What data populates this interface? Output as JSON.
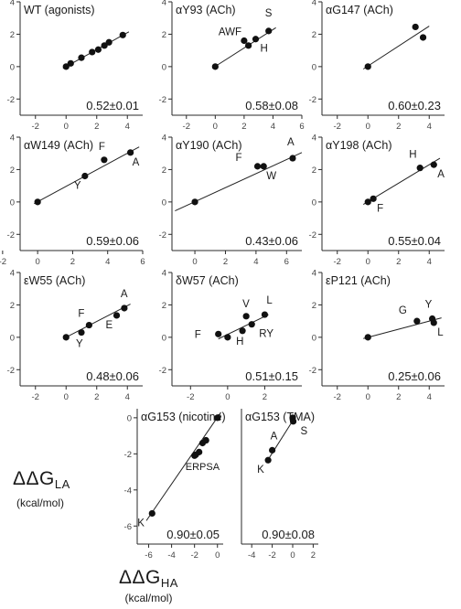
{
  "axis_labels": {
    "y_main": "ΔΔG",
    "y_sub": "LA",
    "y_unit": "(kcal/mol)",
    "x_main": "ΔΔG",
    "x_sub": "HA",
    "x_unit": "(kcal/mol)"
  },
  "chart_data": [
    {
      "type": "scatter",
      "title": "WT (agonists)",
      "xlim": [
        -3,
        5
      ],
      "ylim": [
        -3,
        4
      ],
      "xticks": [
        -2,
        0,
        2,
        4
      ],
      "yticks": [
        -2,
        0,
        2,
        4
      ],
      "points": [
        {
          "x": 0.0,
          "y": 0.0,
          "label": ""
        },
        {
          "x": 0.3,
          "y": 0.2,
          "label": ""
        },
        {
          "x": 1.0,
          "y": 0.55,
          "label": ""
        },
        {
          "x": 1.7,
          "y": 0.9,
          "label": ""
        },
        {
          "x": 2.1,
          "y": 1.05,
          "label": ""
        },
        {
          "x": 2.5,
          "y": 1.3,
          "label": ""
        },
        {
          "x": 2.8,
          "y": 1.5,
          "label": ""
        },
        {
          "x": 3.7,
          "y": 1.95,
          "label": ""
        }
      ],
      "fit": [
        [
          -0.2,
          -0.1
        ],
        [
          4.1,
          2.15
        ]
      ],
      "annotation": "0.52±0.01"
    },
    {
      "type": "scatter",
      "title": "αY93 (ACh)",
      "xlim": [
        -3,
        6
      ],
      "ylim": [
        -3,
        4
      ],
      "xticks": [
        -2,
        0,
        2,
        4,
        6
      ],
      "yticks": [
        -2,
        0,
        2,
        4
      ],
      "points": [
        {
          "x": 0.0,
          "y": 0.0,
          "label": ""
        },
        {
          "x": 2.0,
          "y": 1.6,
          "label": "AWF"
        },
        {
          "x": 2.3,
          "y": 1.3,
          "label": ""
        },
        {
          "x": 2.8,
          "y": 1.7,
          "label": "H"
        },
        {
          "x": 3.7,
          "y": 2.2,
          "label": "S"
        }
      ],
      "fit": [
        [
          -0.2,
          -0.1
        ],
        [
          4.2,
          2.4
        ]
      ],
      "annotation": "0.58±0.08"
    },
    {
      "type": "scatter",
      "title": "αG147 (ACh)",
      "xlim": [
        -3,
        5
      ],
      "ylim": [
        -3,
        4
      ],
      "xticks": [
        -2,
        0,
        2,
        4
      ],
      "yticks": [
        -2,
        0,
        2,
        4
      ],
      "points": [
        {
          "x": 0.0,
          "y": 0.0,
          "label": ""
        },
        {
          "x": 3.1,
          "y": 2.45,
          "label": ""
        },
        {
          "x": 3.6,
          "y": 1.8,
          "label": ""
        }
      ],
      "fit": [
        [
          -0.3,
          -0.15
        ],
        [
          4.0,
          2.5
        ]
      ],
      "annotation": "0.60±0.23"
    },
    {
      "type": "scatter",
      "title": "αW149 (ACh)",
      "xlim": [
        -1,
        6
      ],
      "ylim": [
        -3,
        4
      ],
      "xticks": [
        -2,
        0,
        2,
        4,
        6
      ],
      "yticks": [
        -2,
        0,
        2,
        4
      ],
      "points": [
        {
          "x": 0.0,
          "y": 0.0,
          "label": ""
        },
        {
          "x": 2.7,
          "y": 1.6,
          "label": "Y"
        },
        {
          "x": 3.8,
          "y": 2.6,
          "label": "F"
        },
        {
          "x": 5.3,
          "y": 3.05,
          "label": "A"
        }
      ],
      "fit": [
        [
          -0.2,
          -0.1
        ],
        [
          5.8,
          3.4
        ]
      ],
      "annotation": "0.59±0.06"
    },
    {
      "type": "scatter",
      "title": "αY190 (ACh)",
      "xlim": [
        -1.5,
        7
      ],
      "ylim": [
        -3,
        4
      ],
      "xticks": [
        0,
        2,
        4,
        6
      ],
      "yticks": [
        -2,
        0,
        2,
        4
      ],
      "points": [
        {
          "x": 0.0,
          "y": 0.0,
          "label": ""
        },
        {
          "x": 4.1,
          "y": 2.2,
          "label": "F"
        },
        {
          "x": 4.5,
          "y": 2.2,
          "label": "W"
        },
        {
          "x": 6.4,
          "y": 2.7,
          "label": "A"
        }
      ],
      "fit": [
        [
          -1.3,
          -0.55
        ],
        [
          7.0,
          3.05
        ]
      ],
      "annotation": "0.43±0.06"
    },
    {
      "type": "scatter",
      "title": "αY198 (ACh)",
      "xlim": [
        -3,
        5
      ],
      "ylim": [
        -3,
        4
      ],
      "xticks": [
        -2,
        0,
        2,
        4
      ],
      "yticks": [
        -2,
        0,
        2,
        4
      ],
      "points": [
        {
          "x": 0.0,
          "y": 0.0,
          "label": ""
        },
        {
          "x": 0.35,
          "y": 0.2,
          "label": "F"
        },
        {
          "x": 3.4,
          "y": 2.1,
          "label": "H"
        },
        {
          "x": 4.3,
          "y": 2.3,
          "label": "A"
        }
      ],
      "fit": [
        [
          -0.3,
          -0.15
        ],
        [
          4.7,
          2.7
        ]
      ],
      "annotation": "0.55±0.04"
    },
    {
      "type": "scatter",
      "title": "εW55 (ACh)",
      "xlim": [
        -3,
        5
      ],
      "ylim": [
        -3,
        4
      ],
      "xticks": [
        -2,
        0,
        2,
        4
      ],
      "yticks": [
        -2,
        0,
        2,
        4
      ],
      "points": [
        {
          "x": 0.0,
          "y": 0.0,
          "label": ""
        },
        {
          "x": 1.0,
          "y": 0.3,
          "label": "Y"
        },
        {
          "x": 1.5,
          "y": 0.75,
          "label": "F"
        },
        {
          "x": 3.3,
          "y": 1.35,
          "label": "E"
        },
        {
          "x": 3.8,
          "y": 1.8,
          "label": "A"
        }
      ],
      "fit": [
        [
          -0.1,
          -0.05
        ],
        [
          4.2,
          2.05
        ]
      ],
      "annotation": "0.48±0.06"
    },
    {
      "type": "scatter",
      "title": "δW57 (ACh)",
      "xlim": [
        -3,
        4
      ],
      "ylim": [
        -3,
        4
      ],
      "xticks": [
        -2,
        0,
        2
      ],
      "yticks": [
        -2,
        0,
        2,
        4
      ],
      "points": [
        {
          "x": -0.5,
          "y": 0.2,
          "label": "F"
        },
        {
          "x": 0.0,
          "y": 0.0,
          "label": ""
        },
        {
          "x": 0.8,
          "y": 0.4,
          "label": "H"
        },
        {
          "x": 1.0,
          "y": 1.3,
          "label": "V"
        },
        {
          "x": 1.3,
          "y": 0.8,
          "label": "RY"
        },
        {
          "x": 2.0,
          "y": 1.4,
          "label": "L"
        }
      ],
      "fit": [
        [
          -0.5,
          -0.1
        ],
        [
          2.2,
          1.4
        ]
      ],
      "annotation": "0.51±0.15"
    },
    {
      "type": "scatter",
      "title": "εP121 (ACh)",
      "xlim": [
        -3,
        5
      ],
      "ylim": [
        -3,
        4
      ],
      "xticks": [
        -2,
        0,
        2,
        4
      ],
      "yticks": [
        -2,
        0,
        2,
        4
      ],
      "points": [
        {
          "x": 0.0,
          "y": 0.0,
          "label": ""
        },
        {
          "x": 3.2,
          "y": 1.0,
          "label": "G"
        },
        {
          "x": 4.2,
          "y": 1.15,
          "label": "Y"
        },
        {
          "x": 4.3,
          "y": 0.9,
          "label": "L"
        }
      ],
      "fit": [
        [
          -0.3,
          -0.08
        ],
        [
          4.8,
          1.2
        ]
      ],
      "annotation": "0.25±0.06"
    },
    {
      "type": "scatter",
      "title": "αG153 (nicotine)",
      "xlim": [
        -7,
        0.5
      ],
      "ylim": [
        -7,
        0.5
      ],
      "xticks": [
        -6,
        -4,
        -2,
        0
      ],
      "yticks": [
        -6,
        -4,
        -2,
        0
      ],
      "points": [
        {
          "x": -5.7,
          "y": -5.3,
          "label": "K"
        },
        {
          "x": -2.0,
          "y": -2.1,
          "label": ""
        },
        {
          "x": -1.9,
          "y": -2.05,
          "label": ""
        },
        {
          "x": -1.6,
          "y": -1.9,
          "label": ""
        },
        {
          "x": -1.3,
          "y": -1.4,
          "label": ""
        },
        {
          "x": -1.0,
          "y": -1.25,
          "label": ""
        },
        {
          "x": 0.0,
          "y": 0.0,
          "label": ""
        }
      ],
      "group_labels": [
        {
          "x": -1.3,
          "y": -2.9,
          "text": "ERPSA"
        }
      ],
      "fit": [
        [
          -6.2,
          -5.7
        ],
        [
          0.3,
          0.3
        ]
      ],
      "annotation": "0.90±0.05"
    },
    {
      "type": "scatter",
      "title": "αG153 (TMA)",
      "xlim": [
        -5,
        2.5
      ],
      "ylim": [
        -7,
        0.5
      ],
      "xticks": [
        -4,
        -2,
        0,
        2
      ],
      "yticks": [],
      "points": [
        {
          "x": -2.4,
          "y": -2.35,
          "label": "K"
        },
        {
          "x": -2.0,
          "y": -1.8,
          "label": "A"
        },
        {
          "x": 0.0,
          "y": 0.0,
          "label": ""
        },
        {
          "x": 0.05,
          "y": -0.2,
          "label": "S"
        }
      ],
      "fit": [
        [
          -2.6,
          -2.5
        ],
        [
          0.3,
          0.1
        ]
      ],
      "annotation": "0.90±0.08"
    }
  ]
}
